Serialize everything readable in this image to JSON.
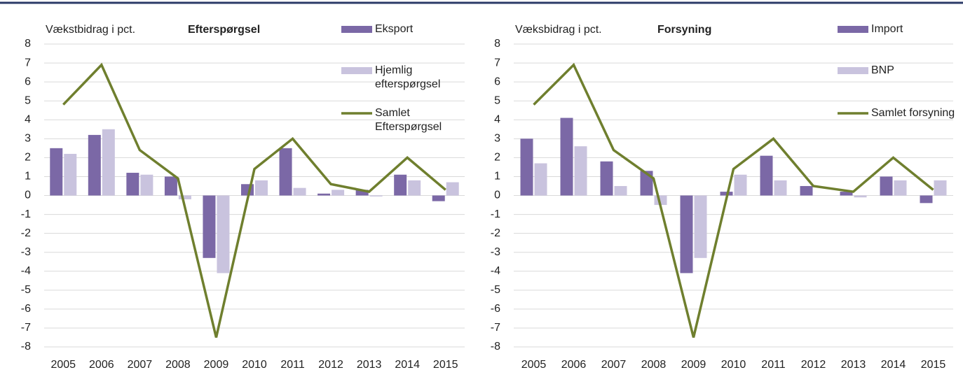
{
  "chart_data": [
    {
      "type": "bar",
      "title": "Efterspørgsel",
      "y_label": "Vækstbidrag i pct.",
      "categories": [
        "2005",
        "2006",
        "2007",
        "2008",
        "2009",
        "2010",
        "2011",
        "2012",
        "2013",
        "2014",
        "2015"
      ],
      "series": [
        {
          "name": "Eksport",
          "color": "#7b68a6",
          "type": "bar",
          "values": [
            2.5,
            3.2,
            1.2,
            1.0,
            -3.3,
            0.6,
            2.5,
            0.1,
            0.3,
            1.1,
            -0.3
          ]
        },
        {
          "name": "Hjemlig efterspørgsel",
          "color": "#c9c3de",
          "type": "bar",
          "values": [
            2.2,
            3.5,
            1.1,
            -0.2,
            -4.1,
            0.8,
            0.4,
            0.3,
            -0.05,
            0.8,
            0.7
          ]
        },
        {
          "name": "Samlet Efterspørgsel",
          "color": "#6f7f2e",
          "type": "line",
          "values": [
            4.8,
            6.9,
            2.4,
            0.9,
            -7.5,
            1.4,
            3.0,
            0.6,
            0.2,
            2.0,
            0.3
          ]
        }
      ],
      "ylim": [
        -8,
        8
      ],
      "yticks": [
        -8,
        -7,
        -6,
        -5,
        -4,
        -3,
        -2,
        -1,
        0,
        1,
        2,
        3,
        4,
        5,
        6,
        7,
        8
      ],
      "grid": true
    },
    {
      "type": "bar",
      "title": "Forsyning",
      "y_label": "Væksbidrag i pct.",
      "categories": [
        "2005",
        "2006",
        "2007",
        "2008",
        "2009",
        "2010",
        "2011",
        "2012",
        "2013",
        "2014",
        "2015"
      ],
      "series": [
        {
          "name": "Import",
          "color": "#7b68a6",
          "type": "bar",
          "values": [
            3.0,
            4.1,
            1.8,
            1.3,
            -4.1,
            0.2,
            2.1,
            0.5,
            0.2,
            1.0,
            -0.4
          ]
        },
        {
          "name": "BNP",
          "color": "#c9c3de",
          "type": "bar",
          "values": [
            1.7,
            2.6,
            0.5,
            -0.5,
            -3.3,
            1.1,
            0.8,
            0,
            -0.1,
            0.8,
            0.8
          ]
        },
        {
          "name": "Samlet forsyning",
          "color": "#6f7f2e",
          "type": "line",
          "values": [
            4.8,
            6.9,
            2.4,
            0.9,
            -7.5,
            1.4,
            3.0,
            0.5,
            0.2,
            2.0,
            0.3
          ]
        }
      ],
      "ylim": [
        -8,
        8
      ],
      "yticks": [
        -8,
        -7,
        -6,
        -5,
        -4,
        -3,
        -2,
        -1,
        0,
        1,
        2,
        3,
        4,
        5,
        6,
        7,
        8
      ],
      "grid": true
    }
  ]
}
